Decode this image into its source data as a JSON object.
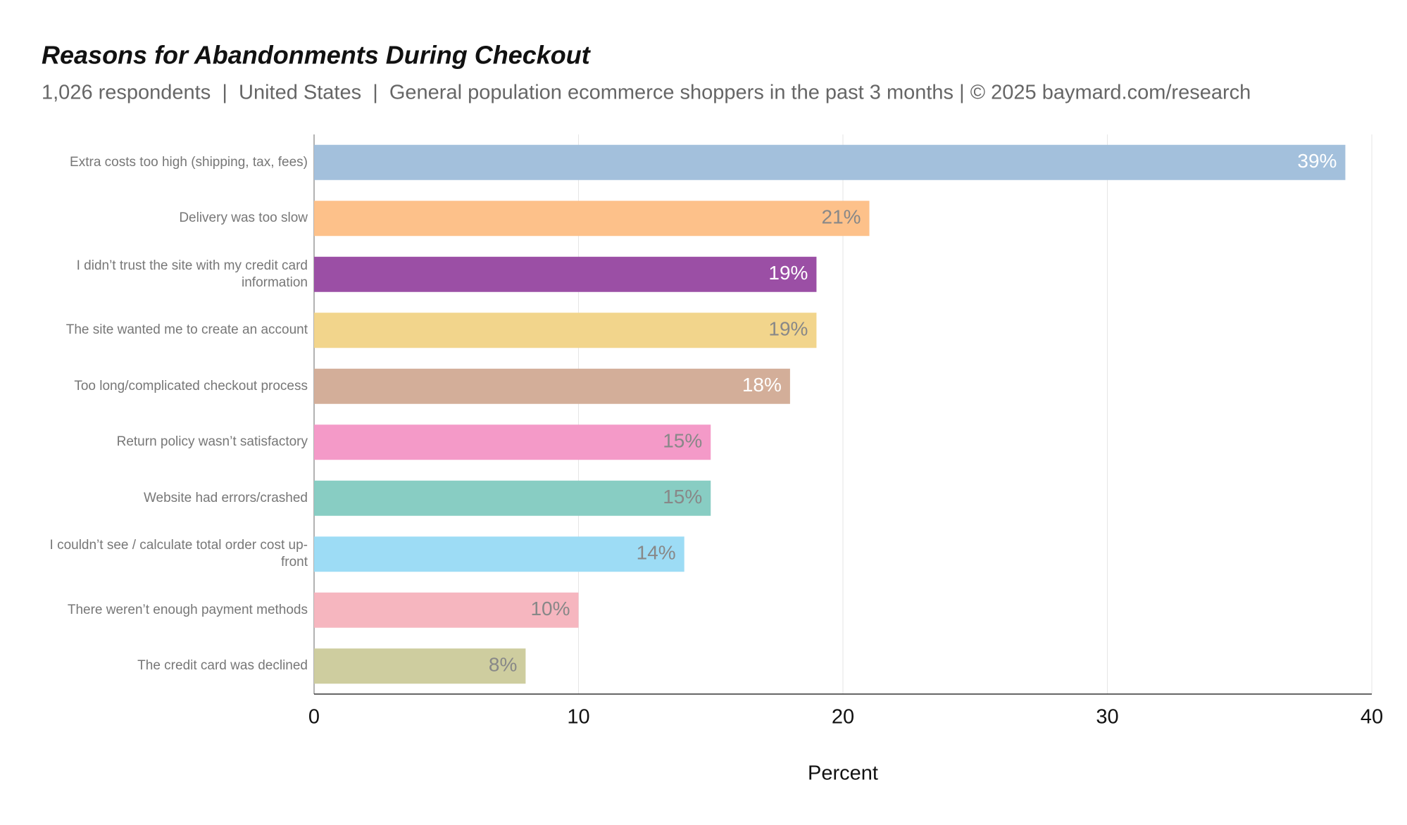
{
  "chart_data": {
    "type": "hbar",
    "title": "Reasons for Abandonments During Checkout",
    "subtitle": "1,026 respondents  |  United States  |  General population ecommerce shoppers in the past 3 months | © 2025 baymard.com/research",
    "x_label": "Percent",
    "categories": [
      "Extra costs too high (shipping, tax, fees)",
      "Delivery was too slow",
      "I didn’t trust the site with my credit card information",
      "The site wanted me to create an account",
      "Too long/complicated checkout process",
      "Return policy wasn’t satisfactory",
      "Website had errors/crashed",
      "I couldn’t see / calculate total order cost up-front",
      "There weren’t enough payment methods",
      "The credit card was declined"
    ],
    "values": [
      39,
      21,
      19,
      19,
      18,
      15,
      15,
      14,
      10,
      8
    ],
    "value_labels": [
      "39%",
      "21%",
      "19%",
      "19%",
      "18%",
      "15%",
      "15%",
      "14%",
      "10%",
      "8%"
    ],
    "colors": [
      "#a3c0dc",
      "#fdc18a",
      "#9b4fa5",
      "#f2d58c",
      "#d3ae99",
      "#f49ac8",
      "#88cdc3",
      "#9ddcf5",
      "#f6b6bf",
      "#cecd9f"
    ],
    "value_label_colors": [
      "#ffffff",
      "#888888",
      "#ffffff",
      "#888888",
      "#ffffff",
      "#888888",
      "#888888",
      "#888888",
      "#888888",
      "#888888"
    ],
    "xlim": [
      0,
      40
    ],
    "xticks": [
      0,
      10,
      20,
      30,
      40
    ],
    "grid": true
  }
}
